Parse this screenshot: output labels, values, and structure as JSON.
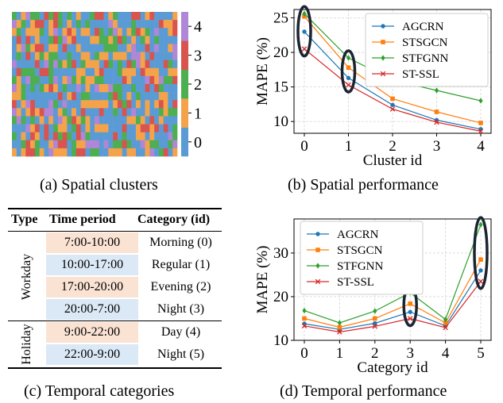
{
  "captions": {
    "a": "(a) Spatial clusters",
    "b": "(b) Spatial performance",
    "c": "(c) Temporal categories",
    "d": "(d) Temporal performance"
  },
  "colors": {
    "AGCRN": "#1f77b4",
    "STSGCN": "#ff7f0e",
    "STFGNN": "#2ca02c",
    "ST-SSL": "#d62728",
    "cluster_colors": [
      "#5b9bd5",
      "#f5a34a",
      "#4caf50",
      "#d9534f",
      "#b086d6"
    ],
    "morning_bg": "#fbe3d4",
    "regular_bg": "#dbe9f6"
  },
  "heatmap": {
    "rows": 18,
    "cols": 36,
    "colorbar_ticks": [
      "0",
      "1",
      "2",
      "3",
      "4"
    ]
  },
  "chart_data": [
    {
      "type": "heatmap",
      "title": "",
      "colorbar": {
        "ticks": [
          0,
          1,
          2,
          3,
          4
        ]
      }
    },
    {
      "type": "line",
      "xlabel": "Cluster id",
      "ylabel": "MAPE (%)",
      "x": [
        0,
        1,
        2,
        3,
        4
      ],
      "xticks": [
        "0",
        "1",
        "2",
        "3",
        "4"
      ],
      "yticks": [
        "10",
        "15",
        "20",
        "25"
      ],
      "ylim": [
        8.3,
        26.2
      ],
      "grid": true,
      "legend": "top-right",
      "series": [
        {
          "name": "AGCRN",
          "values": [
            23.0,
            16.3,
            12.4,
            10.2,
            8.9
          ],
          "marker": "circle"
        },
        {
          "name": "STSGCN",
          "values": [
            25.2,
            17.8,
            13.3,
            11.4,
            9.8
          ],
          "marker": "square"
        },
        {
          "name": "STFGNN",
          "values": [
            25.6,
            19.2,
            16.0,
            14.5,
            13.0
          ],
          "marker": "diamond"
        },
        {
          "name": "ST-SSL",
          "values": [
            20.5,
            15.3,
            11.8,
            9.9,
            8.6
          ],
          "marker": "x"
        }
      ],
      "highlights": [
        0,
        1
      ]
    },
    {
      "type": "table",
      "columns": [
        "Type",
        "Time period",
        "Category (id)"
      ],
      "groups": [
        {
          "type": "Workday",
          "rows": [
            {
              "time": "7:00-10:00",
              "category": "Morning (0)"
            },
            {
              "time": "10:00-17:00",
              "category": "Regular (1)"
            },
            {
              "time": "17:00-20:00",
              "category": "Evening (2)"
            },
            {
              "time": "20:00-7:00",
              "category": "Night (3)"
            }
          ]
        },
        {
          "type": "Holiday",
          "rows": [
            {
              "time": "9:00-22:00",
              "category": "Day (4)"
            },
            {
              "time": "22:00-9:00",
              "category": "Night (5)"
            }
          ]
        }
      ]
    },
    {
      "type": "line",
      "xlabel": "Category id",
      "ylabel": "MAPE (%)",
      "x": [
        0,
        1,
        2,
        3,
        4,
        5
      ],
      "xticks": [
        "0",
        "1",
        "2",
        "3",
        "4",
        "5"
      ],
      "yticks": [
        "10",
        "20",
        "30"
      ],
      "ylim": [
        10,
        37.8
      ],
      "grid": true,
      "legend": "top-left",
      "series": [
        {
          "name": "AGCRN",
          "values": [
            13.8,
            12.5,
            13.9,
            16.5,
            13.3,
            26.0
          ],
          "marker": "circle"
        },
        {
          "name": "STSGCN",
          "values": [
            15.0,
            13.0,
            15.0,
            18.4,
            14.0,
            28.5
          ],
          "marker": "square"
        },
        {
          "name": "STFGNN",
          "values": [
            16.8,
            14.0,
            16.7,
            20.9,
            14.8,
            36.5
          ],
          "marker": "diamond"
        },
        {
          "name": "ST-SSL",
          "values": [
            13.3,
            11.9,
            13.2,
            15.0,
            12.9,
            23.5
          ],
          "marker": "x"
        }
      ],
      "highlights": [
        3,
        5
      ]
    }
  ]
}
